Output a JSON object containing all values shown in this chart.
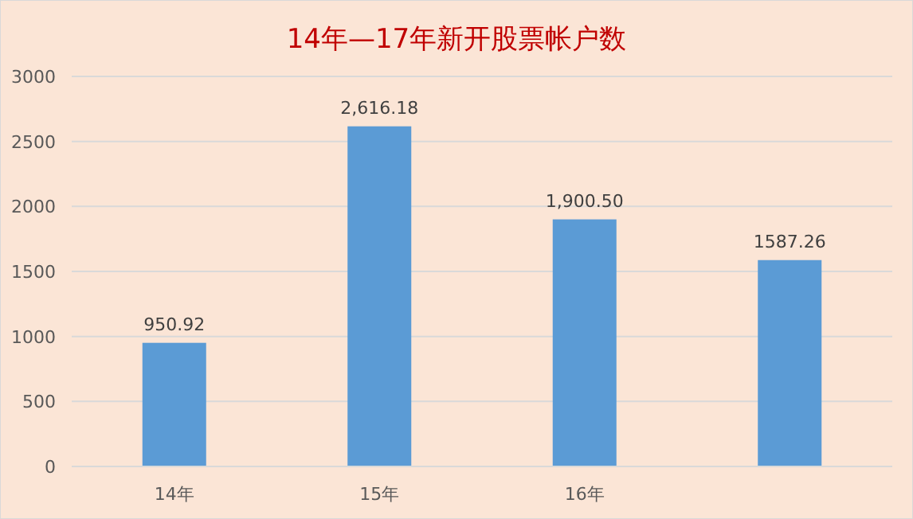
{
  "chart_data": {
    "type": "bar",
    "title": "14年—17年新开股票帐户数",
    "categories": [
      "14年",
      "15年",
      "16年",
      null
    ],
    "values": [
      950.92,
      2616.18,
      1900.5,
      1587.26
    ],
    "value_labels": [
      "950.92",
      "2,616.18",
      "1,900.50",
      "1587.26"
    ],
    "color": "#5b9bd5",
    "ylim": [
      0,
      3000
    ],
    "yticks": [
      0,
      500,
      1000,
      1500,
      2000,
      2500,
      3000
    ],
    "grid": "y"
  }
}
